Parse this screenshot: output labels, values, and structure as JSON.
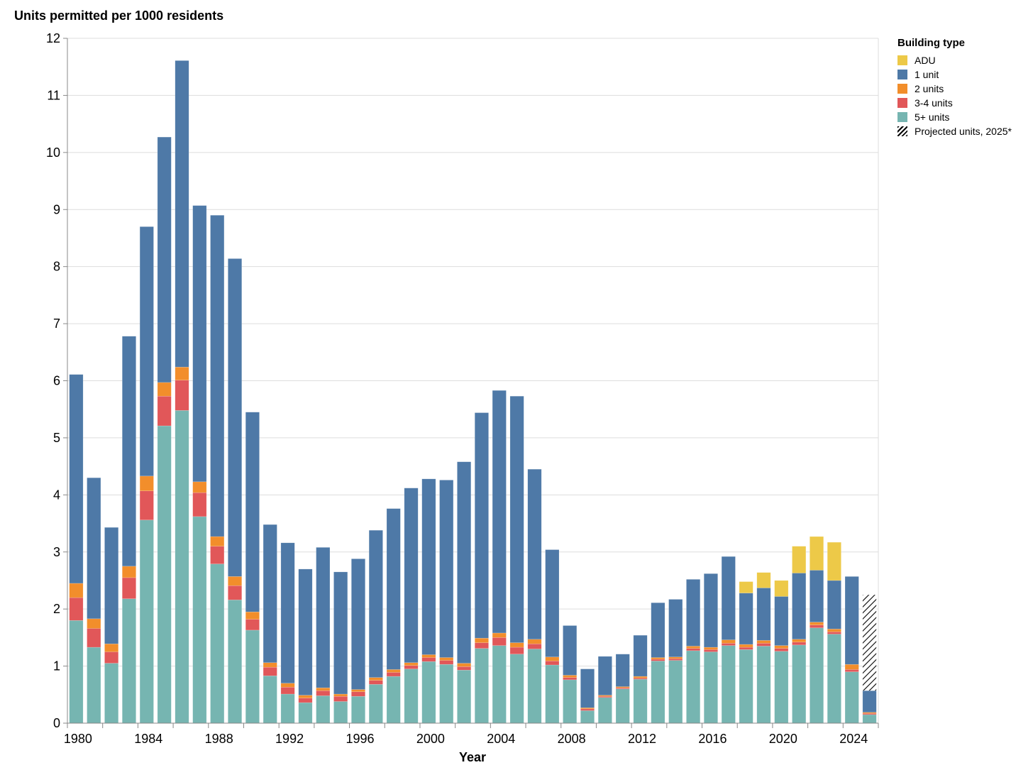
{
  "chart_data": {
    "type": "bar",
    "stacked": true,
    "title": "Units permitted per 1000 residents",
    "xlabel": "Year",
    "ylabel": "",
    "ylim": [
      0,
      12
    ],
    "y_ticks": [
      0,
      1,
      2,
      3,
      4,
      5,
      6,
      7,
      8,
      9,
      10,
      11,
      12
    ],
    "x_tick_labels": [
      "1980",
      "1984",
      "1988",
      "1992",
      "1996",
      "2000",
      "2004",
      "2008",
      "2012",
      "2016",
      "2020",
      "2024"
    ],
    "x_tick_years": [
      1980,
      1984,
      1988,
      1992,
      1996,
      2000,
      2004,
      2008,
      2012,
      2016,
      2020,
      2024
    ],
    "grid": true,
    "legend_position": "right",
    "years": [
      1980,
      1981,
      1982,
      1983,
      1984,
      1985,
      1986,
      1987,
      1988,
      1989,
      1990,
      1991,
      1992,
      1993,
      1994,
      1995,
      1996,
      1997,
      1998,
      1999,
      2000,
      2001,
      2002,
      2003,
      2004,
      2005,
      2006,
      2007,
      2008,
      2009,
      2010,
      2011,
      2012,
      2013,
      2014,
      2015,
      2016,
      2017,
      2018,
      2019,
      2020,
      2021,
      2022,
      2023,
      2024,
      2025
    ],
    "series": [
      {
        "name": "5+ units",
        "color": "#76b5b1",
        "values": [
          1.8,
          1.33,
          1.05,
          2.18,
          3.56,
          5.21,
          5.48,
          3.62,
          2.79,
          2.16,
          1.63,
          0.83,
          0.51,
          0.36,
          0.48,
          0.38,
          0.47,
          0.68,
          0.82,
          0.95,
          1.08,
          1.03,
          0.93,
          1.31,
          1.36,
          1.21,
          1.3,
          1.02,
          0.76,
          0.22,
          0.45,
          0.6,
          0.77,
          1.09,
          1.1,
          1.27,
          1.25,
          1.36,
          1.29,
          1.35,
          1.26,
          1.37,
          1.67,
          1.56,
          0.9,
          0.15
        ]
      },
      {
        "name": "3-4 units",
        "color": "#e15759",
        "values": [
          0.4,
          0.33,
          0.2,
          0.37,
          0.51,
          0.52,
          0.53,
          0.42,
          0.31,
          0.25,
          0.19,
          0.15,
          0.12,
          0.08,
          0.09,
          0.09,
          0.08,
          0.07,
          0.07,
          0.06,
          0.07,
          0.07,
          0.06,
          0.1,
          0.14,
          0.12,
          0.09,
          0.07,
          0.04,
          0.03,
          0.02,
          0.02,
          0.02,
          0.03,
          0.03,
          0.04,
          0.04,
          0.04,
          0.04,
          0.05,
          0.05,
          0.05,
          0.05,
          0.04,
          0.04,
          0.02
        ]
      },
      {
        "name": "2 units",
        "color": "#f28e2b",
        "values": [
          0.25,
          0.17,
          0.14,
          0.2,
          0.26,
          0.24,
          0.23,
          0.19,
          0.17,
          0.16,
          0.13,
          0.08,
          0.07,
          0.05,
          0.05,
          0.04,
          0.04,
          0.05,
          0.05,
          0.05,
          0.05,
          0.05,
          0.06,
          0.08,
          0.08,
          0.08,
          0.08,
          0.07,
          0.04,
          0.02,
          0.02,
          0.02,
          0.03,
          0.03,
          0.03,
          0.04,
          0.04,
          0.06,
          0.05,
          0.05,
          0.05,
          0.05,
          0.05,
          0.05,
          0.09,
          0.02
        ]
      },
      {
        "name": "1 unit",
        "color": "#4e79a7",
        "values": [
          3.66,
          2.47,
          2.04,
          4.03,
          4.37,
          4.3,
          5.37,
          4.84,
          5.63,
          5.57,
          3.5,
          2.42,
          2.46,
          2.21,
          2.46,
          2.14,
          2.29,
          2.58,
          2.82,
          3.06,
          3.08,
          3.11,
          3.53,
          3.95,
          4.25,
          4.32,
          2.98,
          1.88,
          0.87,
          0.68,
          0.68,
          0.57,
          0.72,
          0.96,
          1.01,
          1.17,
          1.29,
          1.46,
          0.9,
          0.92,
          0.86,
          1.16,
          0.91,
          0.85,
          1.54,
          0.38
        ]
      },
      {
        "name": "ADU",
        "color": "#edc948",
        "values": [
          0,
          0,
          0,
          0,
          0,
          0,
          0,
          0,
          0,
          0,
          0,
          0,
          0,
          0,
          0,
          0,
          0,
          0,
          0,
          0,
          0,
          0,
          0,
          0,
          0,
          0,
          0,
          0,
          0,
          0,
          0,
          0,
          0,
          0,
          0,
          0,
          0,
          0,
          0.2,
          0.27,
          0.28,
          0.47,
          0.59,
          0.67,
          0,
          0
        ]
      },
      {
        "name": "Projected units, 2025*",
        "pattern": "hatch",
        "values": [
          0,
          0,
          0,
          0,
          0,
          0,
          0,
          0,
          0,
          0,
          0,
          0,
          0,
          0,
          0,
          0,
          0,
          0,
          0,
          0,
          0,
          0,
          0,
          0,
          0,
          0,
          0,
          0,
          0,
          0,
          0,
          0,
          0,
          0,
          0,
          0,
          0,
          0,
          0,
          0,
          0,
          0,
          0,
          0,
          0,
          1.68
        ]
      }
    ],
    "legend": {
      "title": "Building type",
      "items": [
        {
          "label": "ADU",
          "color": "#edc948"
        },
        {
          "label": "1 unit",
          "color": "#4e79a7"
        },
        {
          "label": "2 units",
          "color": "#f28e2b"
        },
        {
          "label": "3-4 units",
          "color": "#e15759"
        },
        {
          "label": "5+ units",
          "color": "#76b5b1"
        },
        {
          "label": "Projected units, 2025*",
          "color": "hatch"
        }
      ]
    }
  }
}
